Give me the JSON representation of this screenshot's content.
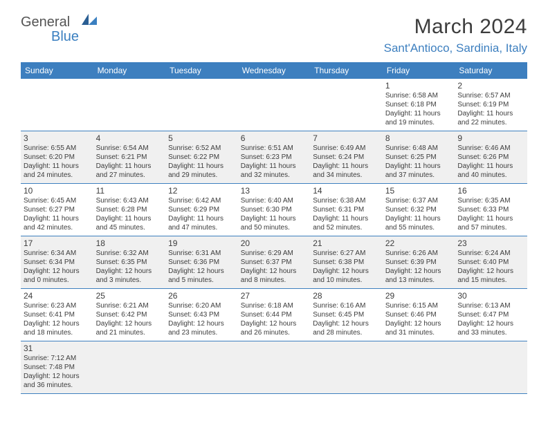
{
  "logo": {
    "general": "General",
    "blue": "Blue"
  },
  "title": "March 2024",
  "location": "Sant'Antioco, Sardinia, Italy",
  "colors": {
    "header_bg": "#3d7fbf",
    "header_text": "#ffffff",
    "alt_row_bg": "#f0f0f0",
    "border": "#3d7fbf",
    "logo_blue": "#3a7fc0",
    "logo_gray": "#545454"
  },
  "columns": [
    "Sunday",
    "Monday",
    "Tuesday",
    "Wednesday",
    "Thursday",
    "Friday",
    "Saturday"
  ],
  "weeks": [
    [
      null,
      null,
      null,
      null,
      null,
      {
        "n": "1",
        "sr": "Sunrise: 6:58 AM",
        "ss": "Sunset: 6:18 PM",
        "d1": "Daylight: 11 hours",
        "d2": "and 19 minutes."
      },
      {
        "n": "2",
        "sr": "Sunrise: 6:57 AM",
        "ss": "Sunset: 6:19 PM",
        "d1": "Daylight: 11 hours",
        "d2": "and 22 minutes."
      }
    ],
    [
      {
        "n": "3",
        "sr": "Sunrise: 6:55 AM",
        "ss": "Sunset: 6:20 PM",
        "d1": "Daylight: 11 hours",
        "d2": "and 24 minutes."
      },
      {
        "n": "4",
        "sr": "Sunrise: 6:54 AM",
        "ss": "Sunset: 6:21 PM",
        "d1": "Daylight: 11 hours",
        "d2": "and 27 minutes."
      },
      {
        "n": "5",
        "sr": "Sunrise: 6:52 AM",
        "ss": "Sunset: 6:22 PM",
        "d1": "Daylight: 11 hours",
        "d2": "and 29 minutes."
      },
      {
        "n": "6",
        "sr": "Sunrise: 6:51 AM",
        "ss": "Sunset: 6:23 PM",
        "d1": "Daylight: 11 hours",
        "d2": "and 32 minutes."
      },
      {
        "n": "7",
        "sr": "Sunrise: 6:49 AM",
        "ss": "Sunset: 6:24 PM",
        "d1": "Daylight: 11 hours",
        "d2": "and 34 minutes."
      },
      {
        "n": "8",
        "sr": "Sunrise: 6:48 AM",
        "ss": "Sunset: 6:25 PM",
        "d1": "Daylight: 11 hours",
        "d2": "and 37 minutes."
      },
      {
        "n": "9",
        "sr": "Sunrise: 6:46 AM",
        "ss": "Sunset: 6:26 PM",
        "d1": "Daylight: 11 hours",
        "d2": "and 40 minutes."
      }
    ],
    [
      {
        "n": "10",
        "sr": "Sunrise: 6:45 AM",
        "ss": "Sunset: 6:27 PM",
        "d1": "Daylight: 11 hours",
        "d2": "and 42 minutes."
      },
      {
        "n": "11",
        "sr": "Sunrise: 6:43 AM",
        "ss": "Sunset: 6:28 PM",
        "d1": "Daylight: 11 hours",
        "d2": "and 45 minutes."
      },
      {
        "n": "12",
        "sr": "Sunrise: 6:42 AM",
        "ss": "Sunset: 6:29 PM",
        "d1": "Daylight: 11 hours",
        "d2": "and 47 minutes."
      },
      {
        "n": "13",
        "sr": "Sunrise: 6:40 AM",
        "ss": "Sunset: 6:30 PM",
        "d1": "Daylight: 11 hours",
        "d2": "and 50 minutes."
      },
      {
        "n": "14",
        "sr": "Sunrise: 6:38 AM",
        "ss": "Sunset: 6:31 PM",
        "d1": "Daylight: 11 hours",
        "d2": "and 52 minutes."
      },
      {
        "n": "15",
        "sr": "Sunrise: 6:37 AM",
        "ss": "Sunset: 6:32 PM",
        "d1": "Daylight: 11 hours",
        "d2": "and 55 minutes."
      },
      {
        "n": "16",
        "sr": "Sunrise: 6:35 AM",
        "ss": "Sunset: 6:33 PM",
        "d1": "Daylight: 11 hours",
        "d2": "and 57 minutes."
      }
    ],
    [
      {
        "n": "17",
        "sr": "Sunrise: 6:34 AM",
        "ss": "Sunset: 6:34 PM",
        "d1": "Daylight: 12 hours",
        "d2": "and 0 minutes."
      },
      {
        "n": "18",
        "sr": "Sunrise: 6:32 AM",
        "ss": "Sunset: 6:35 PM",
        "d1": "Daylight: 12 hours",
        "d2": "and 3 minutes."
      },
      {
        "n": "19",
        "sr": "Sunrise: 6:31 AM",
        "ss": "Sunset: 6:36 PM",
        "d1": "Daylight: 12 hours",
        "d2": "and 5 minutes."
      },
      {
        "n": "20",
        "sr": "Sunrise: 6:29 AM",
        "ss": "Sunset: 6:37 PM",
        "d1": "Daylight: 12 hours",
        "d2": "and 8 minutes."
      },
      {
        "n": "21",
        "sr": "Sunrise: 6:27 AM",
        "ss": "Sunset: 6:38 PM",
        "d1": "Daylight: 12 hours",
        "d2": "and 10 minutes."
      },
      {
        "n": "22",
        "sr": "Sunrise: 6:26 AM",
        "ss": "Sunset: 6:39 PM",
        "d1": "Daylight: 12 hours",
        "d2": "and 13 minutes."
      },
      {
        "n": "23",
        "sr": "Sunrise: 6:24 AM",
        "ss": "Sunset: 6:40 PM",
        "d1": "Daylight: 12 hours",
        "d2": "and 15 minutes."
      }
    ],
    [
      {
        "n": "24",
        "sr": "Sunrise: 6:23 AM",
        "ss": "Sunset: 6:41 PM",
        "d1": "Daylight: 12 hours",
        "d2": "and 18 minutes."
      },
      {
        "n": "25",
        "sr": "Sunrise: 6:21 AM",
        "ss": "Sunset: 6:42 PM",
        "d1": "Daylight: 12 hours",
        "d2": "and 21 minutes."
      },
      {
        "n": "26",
        "sr": "Sunrise: 6:20 AM",
        "ss": "Sunset: 6:43 PM",
        "d1": "Daylight: 12 hours",
        "d2": "and 23 minutes."
      },
      {
        "n": "27",
        "sr": "Sunrise: 6:18 AM",
        "ss": "Sunset: 6:44 PM",
        "d1": "Daylight: 12 hours",
        "d2": "and 26 minutes."
      },
      {
        "n": "28",
        "sr": "Sunrise: 6:16 AM",
        "ss": "Sunset: 6:45 PM",
        "d1": "Daylight: 12 hours",
        "d2": "and 28 minutes."
      },
      {
        "n": "29",
        "sr": "Sunrise: 6:15 AM",
        "ss": "Sunset: 6:46 PM",
        "d1": "Daylight: 12 hours",
        "d2": "and 31 minutes."
      },
      {
        "n": "30",
        "sr": "Sunrise: 6:13 AM",
        "ss": "Sunset: 6:47 PM",
        "d1": "Daylight: 12 hours",
        "d2": "and 33 minutes."
      }
    ],
    [
      {
        "n": "31",
        "sr": "Sunrise: 7:12 AM",
        "ss": "Sunset: 7:48 PM",
        "d1": "Daylight: 12 hours",
        "d2": "and 36 minutes."
      },
      null,
      null,
      null,
      null,
      null,
      null
    ]
  ]
}
